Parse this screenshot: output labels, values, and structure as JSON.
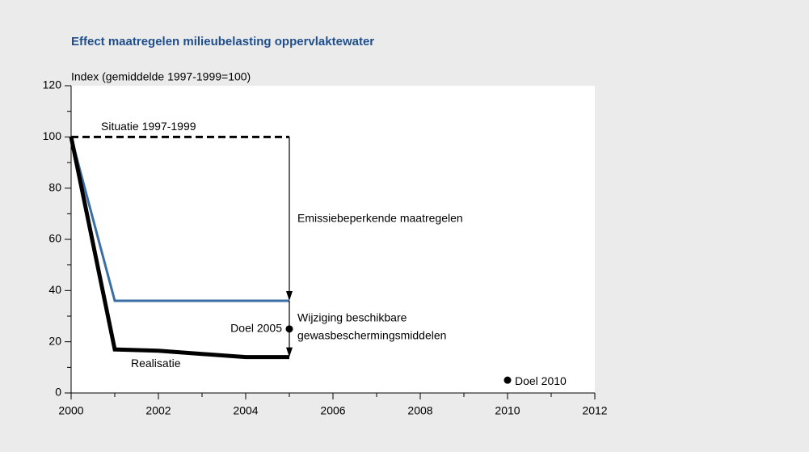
{
  "chart_data": {
    "type": "line",
    "title": "Effect maatregelen milieubelasting oppervlaktewater",
    "y_label": "Index (gemiddelde 1997-1999=100)",
    "xlim": [
      2000,
      2012
    ],
    "xticks": [
      2000,
      2002,
      2004,
      2006,
      2008,
      2010,
      2012
    ],
    "xminor_ticks": [
      2001,
      2003,
      2005,
      2007,
      2009,
      2011
    ],
    "ylim": [
      0,
      120
    ],
    "yticks": [
      0,
      20,
      40,
      60,
      80,
      100,
      120
    ],
    "yminor_ticks": [
      10,
      30,
      50,
      70,
      90,
      110
    ],
    "series": [
      {
        "name": "Situatie 1997-1999",
        "color": "#000000",
        "dashed": true,
        "x": [
          2000,
          2005
        ],
        "values": [
          100,
          100
        ]
      },
      {
        "color": "#3a6ea5",
        "x": [
          2000,
          2001,
          2005
        ],
        "values": [
          100,
          36,
          36
        ]
      },
      {
        "name": "Realisatie",
        "color": "#000000",
        "x": [
          2000,
          2001,
          2002,
          2004,
          2005
        ],
        "values": [
          100,
          17,
          16.5,
          14,
          14
        ]
      }
    ],
    "points": [
      {
        "label": "Doel 2005",
        "x": 2005,
        "y": 25
      },
      {
        "label": "Doel 2010",
        "x": 2010,
        "y": 5
      }
    ],
    "annotations": [
      {
        "lines": [
          "Emissiebeperkende maatregelen"
        ]
      },
      {
        "lines": [
          "Wijziging beschikbare",
          "gewasbeschermingsmiddelen"
        ]
      }
    ]
  }
}
